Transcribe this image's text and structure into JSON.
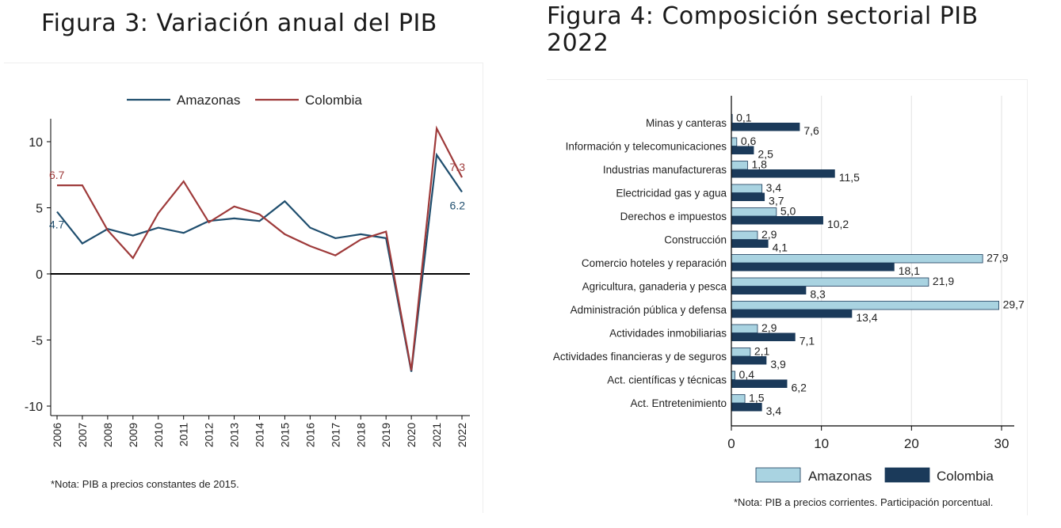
{
  "figure3": {
    "title": "Figura 3: Variación anual del PIB",
    "note": "*Nota: PIB a precios constantes de 2015.",
    "chart_data": {
      "type": "line",
      "title": "Figura 3: Variación anual del PIB",
      "x": [
        2006,
        2007,
        2008,
        2009,
        2010,
        2011,
        2012,
        2013,
        2014,
        2015,
        2016,
        2017,
        2018,
        2019,
        2020,
        2021,
        2022
      ],
      "series": [
        {
          "name": "Amazonas",
          "color": "#1f4e6e",
          "values": [
            4.7,
            2.3,
            3.4,
            2.9,
            3.5,
            3.1,
            4.0,
            4.2,
            4.0,
            5.5,
            3.5,
            2.7,
            3.0,
            2.7,
            -7.4,
            9.0,
            6.2
          ]
        },
        {
          "name": "Colombia",
          "color": "#9e3a3a",
          "values": [
            6.7,
            6.7,
            3.3,
            1.2,
            4.6,
            7.0,
            3.9,
            5.1,
            4.5,
            3.0,
            2.1,
            1.4,
            2.6,
            3.2,
            -7.3,
            11.0,
            7.3
          ]
        }
      ],
      "value_labels": [
        {
          "series": "Colombia",
          "x": 2006,
          "text": "6.7"
        },
        {
          "series": "Amazonas",
          "x": 2006,
          "text": "4.7"
        },
        {
          "series": "Colombia",
          "x": 2022,
          "text": "7.3"
        },
        {
          "series": "Amazonas",
          "x": 2022,
          "text": "6.2"
        }
      ],
      "y_ticks": [
        10,
        5,
        0,
        -5,
        -10
      ],
      "y_tick_labels": [
        "10",
        "5",
        "0",
        "-5",
        "-10"
      ],
      "ylim": [
        -10.5,
        11.5
      ],
      "legend": "top-center",
      "grid": false
    }
  },
  "figure4": {
    "title": "Figura 4: Composición sectorial PIB 2022",
    "note": "*Nota: PIB a precios corrientes. Participación porcentual.",
    "chart_data": {
      "type": "bar",
      "orientation": "horizontal",
      "title": "Figura 4: Composición sectorial PIB 2022",
      "categories": [
        "Minas y canteras",
        "Información y telecomunicaciones",
        "Industrias manufactureras",
        "Electricidad gas y agua",
        "Derechos e impuestos",
        "Construcción",
        "Comercio hoteles y reparación",
        "Agricultura, ganaderia y pesca",
        "Administración pública y defensa",
        "Actividades inmobiliarias",
        "Actividades financieras y de seguros",
        "Act. científicas y técnicas",
        "Act. Entretenimiento"
      ],
      "series": [
        {
          "name": "Amazonas",
          "color": "#a9d3e1",
          "values": [
            0.1,
            0.6,
            1.8,
            3.4,
            5.0,
            2.9,
            27.9,
            21.9,
            29.7,
            2.9,
            2.1,
            0.4,
            1.5
          ],
          "labels": [
            "0,1",
            "0,6",
            "1,8",
            "3,4",
            "5,0",
            "2,9",
            "27,9",
            "21,9",
            "29,7",
            "2,9",
            "2,1",
            "0,4",
            "1,5"
          ]
        },
        {
          "name": "Colombia",
          "color": "#1b3a5a",
          "values": [
            7.6,
            2.5,
            11.5,
            3.7,
            10.2,
            4.1,
            18.1,
            8.3,
            13.4,
            7.1,
            3.9,
            6.2,
            3.4
          ],
          "labels": [
            "7,6",
            "2,5",
            "11,5",
            "3,7",
            "10,2",
            "4,1",
            "18,1",
            "8,3",
            "13,4",
            "7,1",
            "3,9",
            "6,2",
            "3,4"
          ]
        }
      ],
      "x_ticks": [
        0,
        10,
        20,
        30
      ],
      "x_tick_labels": [
        "0",
        "10",
        "20",
        "30"
      ],
      "xlim": [
        0,
        31
      ],
      "legend": "bottom-center",
      "grid": true
    }
  }
}
